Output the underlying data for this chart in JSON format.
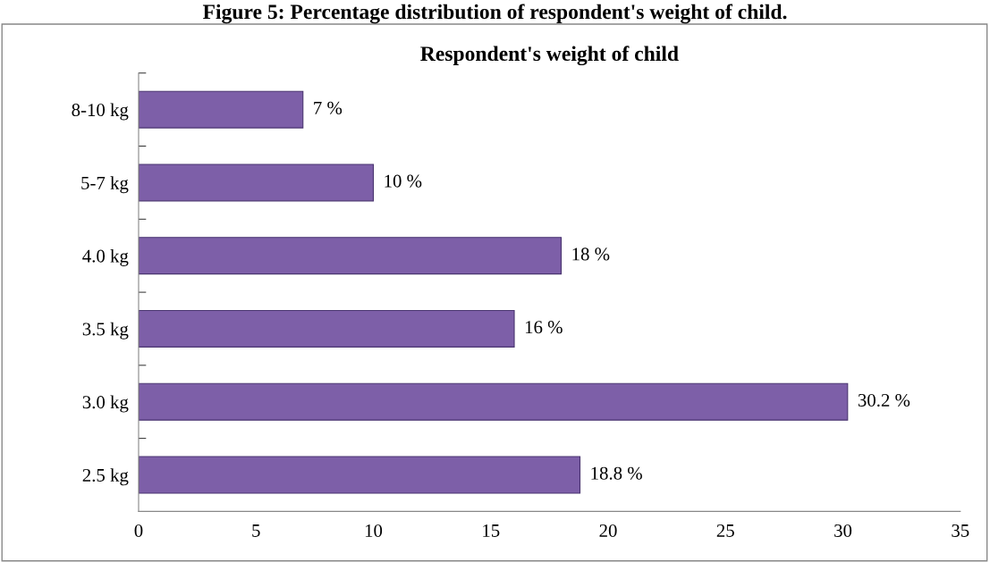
{
  "chart_data": {
    "type": "bar",
    "orientation": "horizontal",
    "title": "Figure 5: Percentage distribution of respondent's weight of child.",
    "subtitle": "Respondent's weight of child",
    "categories": [
      "8-10 kg",
      "5-7 kg",
      "4.0 kg",
      "3.5 kg",
      "3.0 kg",
      "2.5 kg"
    ],
    "values": [
      7,
      10,
      18,
      16,
      30.2,
      18.8
    ],
    "color": "#7d5fa8",
    "value_labels": [
      "7 %",
      "10 %",
      "18 %",
      "16 %",
      "30.2 %",
      "18.8 %"
    ],
    "xlim": [
      0,
      35
    ],
    "xticks": [
      0,
      5,
      10,
      15,
      20,
      25,
      30,
      35
    ],
    "grid": false,
    "legend": false
  }
}
